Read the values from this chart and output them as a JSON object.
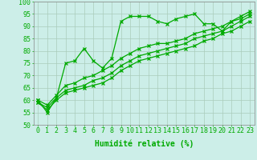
{
  "title": "",
  "xlabel": "Humidité relative (%)",
  "ylabel": "",
  "bg_color": "#cceee8",
  "grid_color": "#aaccbb",
  "line_color": "#00aa00",
  "xlim": [
    -0.5,
    23.5
  ],
  "ylim": [
    50,
    100
  ],
  "xticks": [
    0,
    1,
    2,
    3,
    4,
    5,
    6,
    7,
    8,
    9,
    10,
    11,
    12,
    13,
    14,
    15,
    16,
    17,
    18,
    19,
    20,
    21,
    22,
    23
  ],
  "yticks": [
    50,
    55,
    60,
    65,
    70,
    75,
    80,
    85,
    90,
    95,
    100
  ],
  "series1_y": [
    60,
    55,
    61,
    75,
    76,
    81,
    76,
    73,
    77,
    92,
    94,
    94,
    94,
    92,
    91,
    93,
    94,
    95,
    91,
    91,
    88,
    92,
    94,
    96
  ],
  "series2_y": [
    60,
    58,
    62,
    66,
    67,
    69,
    70,
    72,
    74,
    77,
    79,
    81,
    82,
    83,
    83,
    84,
    85,
    87,
    88,
    89,
    90,
    92,
    93,
    95
  ],
  "series3_y": [
    59,
    57,
    61,
    64,
    65,
    66,
    68,
    69,
    71,
    74,
    76,
    78,
    79,
    80,
    81,
    82,
    83,
    85,
    86,
    87,
    88,
    90,
    92,
    94
  ],
  "series4_y": [
    59,
    56,
    60,
    63,
    64,
    65,
    66,
    67,
    69,
    72,
    74,
    76,
    77,
    78,
    79,
    80,
    81,
    82,
    84,
    85,
    87,
    88,
    90,
    92
  ],
  "xlabel_fontsize": 7,
  "tick_fontsize": 6
}
